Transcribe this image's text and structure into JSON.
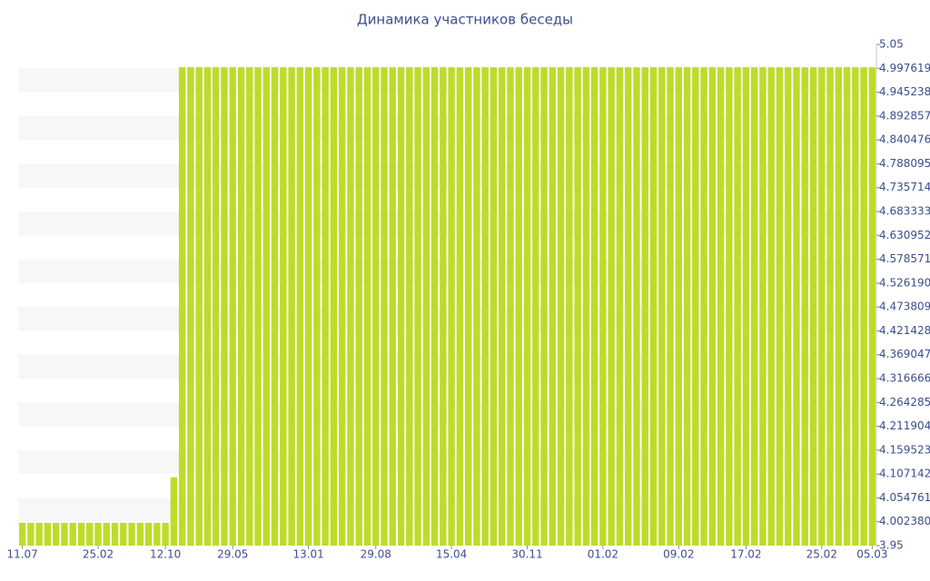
{
  "chart_data": {
    "type": "bar",
    "title": "Динамика участников беседы",
    "categories": [
      "11.07",
      null,
      null,
      null,
      null,
      null,
      null,
      null,
      null,
      "25.02",
      null,
      null,
      null,
      null,
      null,
      null,
      null,
      "12.10",
      null,
      null,
      null,
      null,
      null,
      null,
      null,
      "29.05",
      null,
      null,
      null,
      null,
      null,
      null,
      null,
      null,
      "13.01",
      null,
      null,
      null,
      null,
      null,
      null,
      null,
      "29.08",
      null,
      null,
      null,
      null,
      null,
      null,
      null,
      null,
      "15.04",
      null,
      null,
      null,
      null,
      null,
      null,
      null,
      null,
      "30.11",
      null,
      null,
      null,
      null,
      null,
      null,
      null,
      null,
      "01.02",
      null,
      null,
      null,
      null,
      null,
      null,
      null,
      null,
      "09.02",
      null,
      null,
      null,
      null,
      null,
      null,
      null,
      "17.02",
      null,
      null,
      null,
      null,
      null,
      null,
      null,
      null,
      "25.02",
      null,
      null,
      null,
      null,
      null,
      "05.03"
    ],
    "values": [
      4,
      4,
      4,
      4,
      4,
      4,
      4,
      4,
      4,
      4,
      4,
      4,
      4,
      4,
      4,
      4,
      4,
      4,
      4.1,
      5,
      5,
      5,
      5,
      5,
      5,
      5,
      5,
      5,
      5,
      5,
      5,
      5,
      5,
      5,
      5,
      5,
      5,
      5,
      5,
      5,
      5,
      5,
      5,
      5,
      5,
      5,
      5,
      5,
      5,
      5,
      5,
      5,
      5,
      5,
      5,
      5,
      5,
      5,
      5,
      5,
      5,
      5,
      5,
      5,
      5,
      5,
      5,
      5,
      5,
      5,
      5,
      5,
      5,
      5,
      5,
      5,
      5,
      5,
      5,
      5,
      5,
      5,
      5,
      5,
      5,
      5,
      5,
      5,
      5,
      5,
      5,
      5,
      5,
      5,
      5,
      5,
      5,
      5,
      5,
      5,
      5,
      5
    ],
    "color": "#bddc2a",
    "ylim": [
      3.95,
      5.05
    ],
    "yticks": [
      3.95,
      {
        "value": 4.00238,
        "label": "4.002380"
      },
      4.054761,
      4.107142,
      4.159523,
      4.211904,
      4.264285,
      4.316666,
      4.369047,
      4.421428,
      4.473809,
      {
        "value": 4.52619,
        "label": "4.526190"
      },
      4.578571,
      4.630952,
      4.683333,
      4.735714,
      4.788095,
      4.840476,
      4.892857,
      4.945238,
      4.997619,
      5.05
    ],
    "grid": true
  }
}
